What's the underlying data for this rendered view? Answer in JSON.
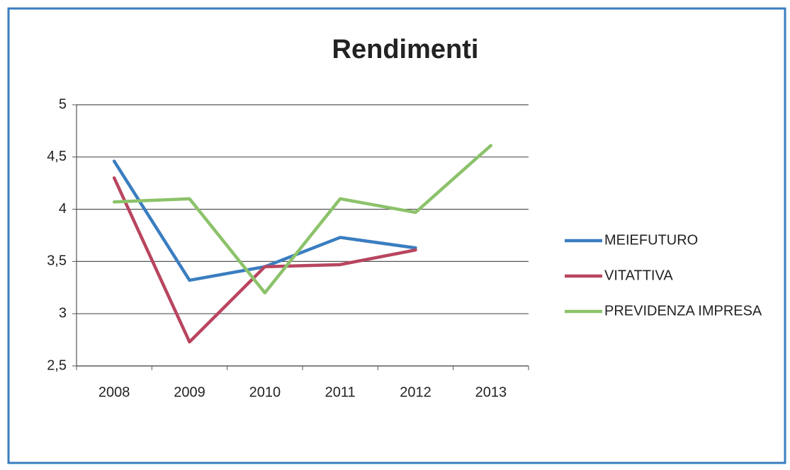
{
  "chart_data": {
    "type": "line",
    "title": "Rendimenti",
    "categories": [
      "2008",
      "2009",
      "2010",
      "2011",
      "2012",
      "2013"
    ],
    "series": [
      {
        "name": "MEIEFUTURO",
        "color": "#3a7dc0",
        "values": [
          4.46,
          3.32,
          3.45,
          3.73,
          3.63,
          null
        ]
      },
      {
        "name": "VITATTIVA",
        "color": "#b8455f",
        "values": [
          4.3,
          2.73,
          3.45,
          3.47,
          3.61,
          null
        ]
      },
      {
        "name": "PREVIDENZA IMPRESA",
        "color": "#8cc26a",
        "values": [
          4.07,
          4.1,
          3.2,
          4.1,
          3.97,
          4.61
        ]
      }
    ],
    "ylim": [
      2.5,
      5
    ],
    "yticks": [
      {
        "value": 2.5,
        "label": "2,5"
      },
      3,
      {
        "value": 3.5,
        "label": "3,5"
      },
      4,
      {
        "value": 4.5,
        "label": "4,5"
      },
      5
    ],
    "grid": true,
    "legend": "right"
  }
}
